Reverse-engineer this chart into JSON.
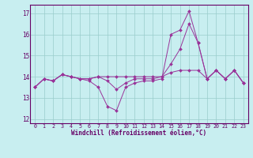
{
  "title": "",
  "xlabel": "Windchill (Refroidissement éolien,°C)",
  "bg_color": "#c8eef0",
  "line_color": "#993399",
  "grid_color": "#99cccc",
  "axis_color": "#660066",
  "tick_color": "#660066",
  "xlim": [
    -0.5,
    23.5
  ],
  "ylim": [
    11.8,
    17.4
  ],
  "yticks": [
    12,
    13,
    14,
    15,
    16,
    17
  ],
  "xticks": [
    0,
    1,
    2,
    3,
    4,
    5,
    6,
    7,
    8,
    9,
    10,
    11,
    12,
    13,
    14,
    15,
    16,
    17,
    18,
    19,
    20,
    21,
    22,
    23
  ],
  "series": [
    [
      13.5,
      13.9,
      13.8,
      14.1,
      14.0,
      13.9,
      13.8,
      13.5,
      12.6,
      12.4,
      13.5,
      13.7,
      13.8,
      13.8,
      13.9,
      16.0,
      16.2,
      17.1,
      15.6,
      13.9,
      14.3,
      13.9,
      14.3,
      13.7
    ],
    [
      13.5,
      13.9,
      13.8,
      14.1,
      14.0,
      13.9,
      13.9,
      14.0,
      13.8,
      13.4,
      13.7,
      13.9,
      13.9,
      13.9,
      14.0,
      14.6,
      15.3,
      16.5,
      15.6,
      13.9,
      14.3,
      13.9,
      14.3,
      13.7
    ],
    [
      13.5,
      13.9,
      13.8,
      14.1,
      14.0,
      13.9,
      13.9,
      14.0,
      14.0,
      14.0,
      14.0,
      14.0,
      14.0,
      14.0,
      14.0,
      14.2,
      14.3,
      14.3,
      14.3,
      13.9,
      14.3,
      13.9,
      14.3,
      13.7
    ]
  ]
}
